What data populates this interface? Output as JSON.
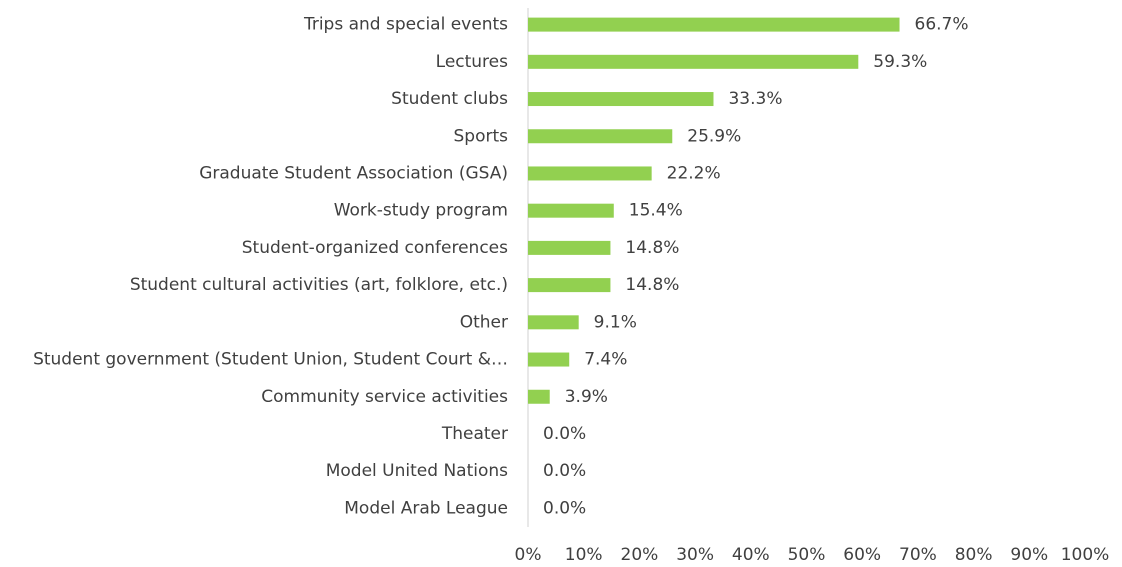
{
  "chart_data": {
    "type": "bar",
    "orientation": "horizontal",
    "color": "#92d050",
    "categories": [
      "Trips and special events",
      "Lectures",
      "Student clubs",
      "Sports",
      "Graduate Student Association (GSA)",
      "Work-study program",
      "Student-organized conferences",
      "Student cultural activities (art, folklore, etc.)",
      "Other",
      "Student government (Student Union, Student Court &…",
      "Community service activities",
      "Theater",
      "Model United Nations",
      "Model Arab League"
    ],
    "values": [
      66.7,
      59.3,
      33.3,
      25.9,
      22.2,
      15.4,
      14.8,
      14.8,
      9.1,
      7.4,
      3.9,
      0.0,
      0.0,
      0.0
    ],
    "value_labels": [
      "66.7%",
      "59.3%",
      "33.3%",
      "25.9%",
      "22.2%",
      "15.4%",
      "14.8%",
      "14.8%",
      "9.1%",
      "7.4%",
      "3.9%",
      "0.0%",
      "0.0%",
      "0.0%"
    ],
    "xlim": [
      0,
      100
    ],
    "xticks": [
      {
        "value": 0,
        "label": "0%"
      },
      {
        "value": 10,
        "label": "10%"
      },
      {
        "value": 20,
        "label": "20%"
      },
      {
        "value": 30,
        "label": "30%"
      },
      {
        "value": 40,
        "label": "40%"
      },
      {
        "value": 50,
        "label": "50%"
      },
      {
        "value": 60,
        "label": "60%"
      },
      {
        "value": 70,
        "label": "70%"
      },
      {
        "value": 80,
        "label": "80%"
      },
      {
        "value": 90,
        "label": "90%"
      },
      {
        "value": 100,
        "label": "100%"
      }
    ],
    "grid": false
  }
}
